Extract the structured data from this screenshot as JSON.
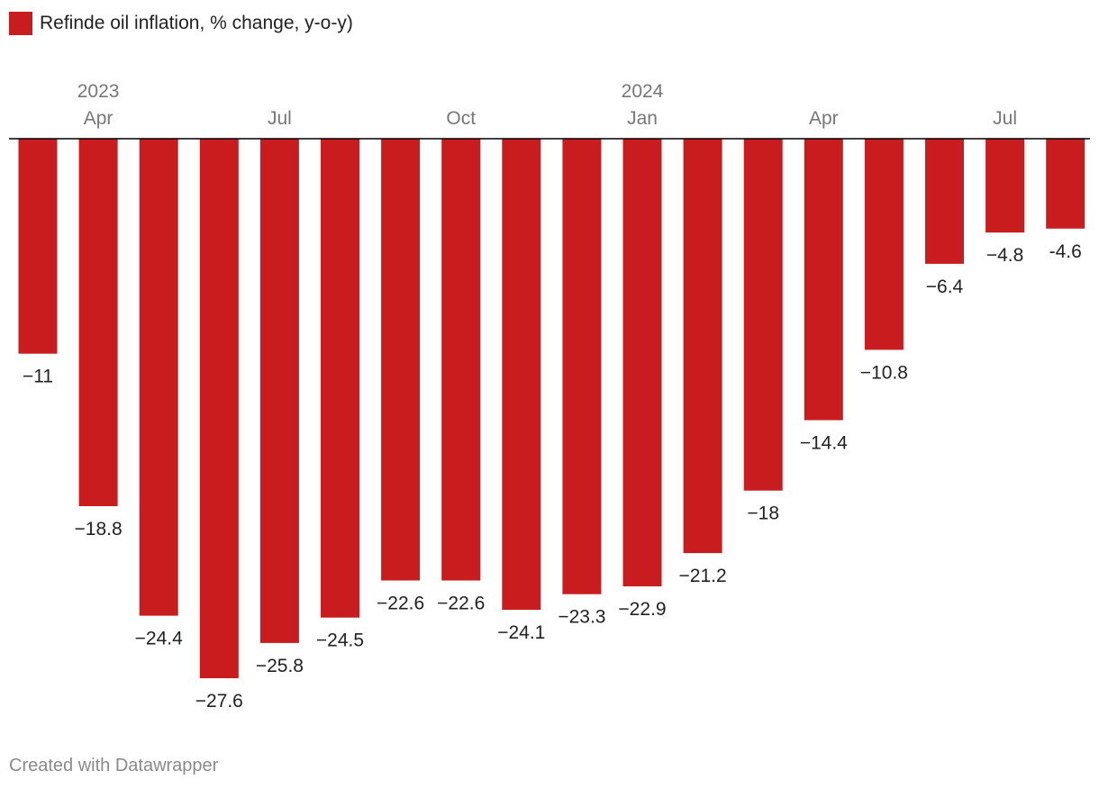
{
  "colors": {
    "bar": "#c81c1e",
    "axis": "#000000",
    "tick_text": "#777777",
    "label_text": "#222222"
  },
  "legend": {
    "label": "Refinde oil inflation, % change, y-o-y)"
  },
  "footer": {
    "credit": "Created with Datawrapper"
  },
  "chart_data": {
    "type": "bar",
    "title": "",
    "xlabel": "",
    "ylabel": "",
    "ylim": [
      -27.6,
      0
    ],
    "grid": false,
    "legend_position": "top-left",
    "categories": [
      "2023-03",
      "2023-04",
      "2023-05",
      "2023-06",
      "2023-07",
      "2023-08",
      "2023-09",
      "2023-10",
      "2023-11",
      "2023-12",
      "2024-01",
      "2024-02",
      "2024-03",
      "2024-04",
      "2024-05",
      "2024-06",
      "2024-07",
      "2024-08"
    ],
    "series": [
      {
        "name": "Refinde oil inflation, % change, y-o-y)",
        "values": [
          -11,
          -18.8,
          -24.4,
          -27.6,
          -25.8,
          -24.5,
          -22.6,
          -22.6,
          -24.1,
          -23.3,
          -22.9,
          -21.2,
          -18,
          -14.4,
          -10.8,
          -6.4,
          -4.8,
          -4.6
        ]
      }
    ],
    "data_labels": [
      "−11",
      "−18.8",
      "−24.4",
      "−27.6",
      "−25.8",
      "−24.5",
      "−22.6",
      "−22.6",
      "−24.1",
      "−23.3",
      "−22.9",
      "−21.2",
      "−18",
      "−14.4",
      "−10.8",
      "−6.4",
      "−4.8",
      "-4.6"
    ],
    "x_ticks": [
      {
        "index": 1,
        "label": "Apr",
        "year": "2023"
      },
      {
        "index": 4,
        "label": "Jul"
      },
      {
        "index": 7,
        "label": "Oct"
      },
      {
        "index": 10,
        "label": "Jan",
        "year": "2024"
      },
      {
        "index": 13,
        "label": "Apr"
      },
      {
        "index": 16,
        "label": "Jul"
      }
    ]
  }
}
